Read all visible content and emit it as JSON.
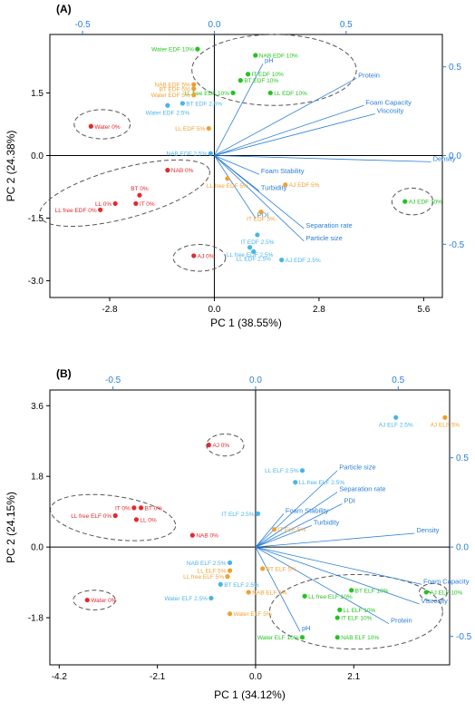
{
  "chart_data": [
    {
      "type": "scatter",
      "panel": "(A)",
      "xlabel": "PC 1 (38.55%)",
      "ylabel": "PC 2 (24.38%)",
      "xlim": [
        -4.4,
        6.1
      ],
      "ylim": [
        -3.4,
        2.9
      ],
      "xticks": [
        "-2.8",
        "0.0",
        "2.8",
        "5.6"
      ],
      "xtick_values": [
        -2.8,
        0.0,
        2.8,
        5.6
      ],
      "yticks": [
        "1.5",
        "0.0",
        "-1.5",
        "-3.0"
      ],
      "ytick_values": [
        1.5,
        0.0,
        -1.5,
        -3.0
      ],
      "loading_axis_ticks_top": [
        "-0.5",
        "0.0",
        "0.5"
      ],
      "loading_axis_ticks_top_values": [
        -0.5,
        0.0,
        0.5
      ],
      "loading_axis_ticks_right": [
        "0.5",
        "0.0",
        "-0.5"
      ],
      "loading_axis_ticks_right_values": [
        0.5,
        0.0,
        -0.5
      ],
      "colors": {
        "red": "#e8262d",
        "orange": "#f0a030",
        "blue": "#4ab4e8",
        "green": "#22c41e",
        "vector": "#2a7fd6"
      },
      "points": [
        {
          "label": "Water EDF 10%",
          "x": -0.45,
          "y": 2.55,
          "color": "green",
          "anchor": "end"
        },
        {
          "label": "NAB EDF 10%",
          "x": 1.1,
          "y": 2.4,
          "color": "green",
          "anchor": "start"
        },
        {
          "label": "IT EDF 10%",
          "x": 0.9,
          "y": 1.95,
          "color": "green",
          "anchor": "start"
        },
        {
          "label": "BT EDF 10%",
          "x": 0.7,
          "y": 1.8,
          "color": "green",
          "anchor": "start"
        },
        {
          "label": "LL EDF 10%",
          "x": 1.5,
          "y": 1.5,
          "color": "green",
          "anchor": "start"
        },
        {
          "label": "LL free EDF 10%",
          "x": 0.5,
          "y": 1.5,
          "color": "green",
          "anchor": "end"
        },
        {
          "label": "AJ EDF 10%",
          "x": 5.1,
          "y": -1.1,
          "color": "green",
          "anchor": "start"
        },
        {
          "label": "NAB EDF 5%",
          "x": -0.55,
          "y": 1.7,
          "color": "orange",
          "anchor": "end"
        },
        {
          "label": "BT EDF 5%",
          "x": -0.55,
          "y": 1.6,
          "color": "orange",
          "anchor": "end"
        },
        {
          "label": "Water EDF 5%",
          "x": -0.55,
          "y": 1.45,
          "color": "orange",
          "anchor": "end"
        },
        {
          "label": "LL EDF 5%",
          "x": -0.15,
          "y": 0.65,
          "color": "orange",
          "anchor": "end"
        },
        {
          "label": "LL free EDF 5%",
          "x": 0.35,
          "y": -0.55,
          "color": "orange",
          "anchor": "middle-below"
        },
        {
          "label": "AJ EDF 5%",
          "x": 1.9,
          "y": -0.7,
          "color": "orange",
          "anchor": "start"
        },
        {
          "label": "IT EDF 5%",
          "x": 1.25,
          "y": -1.35,
          "color": "orange",
          "anchor": "middle-below"
        },
        {
          "label": "BT EDF 2.5%",
          "x": -0.85,
          "y": 1.25,
          "color": "blue",
          "anchor": "start"
        },
        {
          "label": "Water EDF 2.5%",
          "x": -1.25,
          "y": 1.2,
          "color": "blue",
          "anchor": "middle-below"
        },
        {
          "label": "NAB EDF 2.5%",
          "x": -0.1,
          "y": 0.05,
          "color": "blue",
          "anchor": "end"
        },
        {
          "label": "IT EDF 2.5%",
          "x": 1.15,
          "y": -1.9,
          "color": "blue",
          "anchor": "middle-below"
        },
        {
          "label": "LL free EDF 2.5%",
          "x": 0.95,
          "y": -2.2,
          "color": "blue",
          "anchor": "middle-below"
        },
        {
          "label": "LL EDF 2.5%",
          "x": 1.05,
          "y": -2.3,
          "color": "blue",
          "anchor": "middle-below"
        },
        {
          "label": "AJ EDF 2.5%",
          "x": 1.8,
          "y": -2.5,
          "color": "blue",
          "anchor": "start"
        },
        {
          "label": "Water 0%",
          "x": -3.3,
          "y": 0.7,
          "color": "red",
          "anchor": "start"
        },
        {
          "label": "NAB 0%",
          "x": -1.25,
          "y": -0.35,
          "color": "red",
          "anchor": "start"
        },
        {
          "label": "BT 0%",
          "x": -2.0,
          "y": -0.95,
          "color": "red",
          "anchor": "middle-above"
        },
        {
          "label": "IT 0%",
          "x": -2.1,
          "y": -1.15,
          "color": "red",
          "anchor": "start"
        },
        {
          "label": "LL 0%",
          "x": -2.65,
          "y": -1.15,
          "color": "red",
          "anchor": "end"
        },
        {
          "label": "LL free EDF 0%",
          "x": -3.05,
          "y": -1.3,
          "color": "red",
          "anchor": "end"
        },
        {
          "label": "AJ 0%",
          "x": -0.55,
          "y": -2.4,
          "color": "red",
          "anchor": "start"
        }
      ],
      "vectors": [
        {
          "label": "pH",
          "x": 1.3,
          "y": 2.2
        },
        {
          "label": "Protein",
          "x": 3.8,
          "y": 1.85
        },
        {
          "label": "Foam Capacity",
          "x": 4.0,
          "y": 1.2
        },
        {
          "label": "Viscosity",
          "x": 4.3,
          "y": 1.0
        },
        {
          "label": "Density",
          "x": 5.8,
          "y": -0.15
        },
        {
          "label": "Foam Stability",
          "x": 1.2,
          "y": -0.45
        },
        {
          "label": "Turbidity",
          "x": 1.2,
          "y": -0.85
        },
        {
          "label": "PDI",
          "x": 1.1,
          "y": -1.5
        },
        {
          "label": "Separation rate",
          "x": 2.4,
          "y": -1.75
        },
        {
          "label": "Particle size",
          "x": 2.4,
          "y": -2.05
        }
      ],
      "ellipses": [
        {
          "cx": 1.6,
          "cy": 2.05,
          "rx": 2.2,
          "ry": 0.85,
          "rot": 0
        },
        {
          "cx": -3.0,
          "cy": 0.75,
          "rx": 0.75,
          "ry": 0.35,
          "rot": 0
        },
        {
          "cx": -2.4,
          "cy": -0.9,
          "rx": 2.35,
          "ry": 0.6,
          "rot": 15
        },
        {
          "cx": -0.4,
          "cy": -2.45,
          "rx": 0.7,
          "ry": 0.32,
          "rot": 0
        },
        {
          "cx": 5.3,
          "cy": -1.1,
          "rx": 0.55,
          "ry": 0.32,
          "rot": 0
        }
      ]
    },
    {
      "type": "scatter",
      "panel": "(B)",
      "xlabel": "PC 1 (34.12%)",
      "ylabel": "PC 2 (24.15%)",
      "xlim": [
        -4.4,
        4.15
      ],
      "ylim": [
        -3.0,
        4.0
      ],
      "xticks": [
        "-4.2",
        "-2.1",
        "0.0",
        "2.1"
      ],
      "xtick_values": [
        -4.2,
        -2.1,
        0.0,
        2.1
      ],
      "yticks": [
        "3.6",
        "1.8",
        "0.0",
        "-1.8"
      ],
      "ytick_values": [
        3.6,
        1.8,
        0.0,
        -1.8
      ],
      "loading_axis_ticks_top": [
        "-0.5",
        "0.0",
        "0.5"
      ],
      "loading_axis_ticks_top_values": [
        -0.5,
        0.0,
        0.5
      ],
      "loading_axis_ticks_right": [
        "0.5",
        "0.0",
        "-0.5"
      ],
      "loading_axis_ticks_right_values": [
        0.5,
        0.0,
        -0.5
      ],
      "colors": {
        "red": "#e8262d",
        "orange": "#f0a030",
        "blue": "#4ab4e8",
        "green": "#22c41e",
        "vector": "#2a7fd6"
      },
      "points": [
        {
          "label": "AJ ELF 2.5%",
          "x": 3.0,
          "y": 3.3,
          "color": "blue",
          "anchor": "middle-below"
        },
        {
          "label": "AJ ELF 5%",
          "x": 4.05,
          "y": 3.3,
          "color": "orange",
          "anchor": "middle-below"
        },
        {
          "label": "LL ELF 2.5%",
          "x": 1.0,
          "y": 1.95,
          "color": "blue",
          "anchor": "end"
        },
        {
          "label": "LL free ELF 2.5%",
          "x": 0.85,
          "y": 1.65,
          "color": "blue",
          "anchor": "start"
        },
        {
          "label": "IT ELF 2.5%",
          "x": 0.05,
          "y": 0.85,
          "color": "blue",
          "anchor": "end"
        },
        {
          "label": "IT ELF 5%",
          "x": 0.4,
          "y": 0.45,
          "color": "orange",
          "anchor": "start"
        },
        {
          "label": "AJ 0%",
          "x": -1.0,
          "y": 2.6,
          "color": "red",
          "anchor": "start"
        },
        {
          "label": "LL free ELF 0%",
          "x": -3.0,
          "y": 0.8,
          "color": "red",
          "anchor": "end"
        },
        {
          "label": "IT 0%",
          "x": -2.6,
          "y": 1.0,
          "color": "red",
          "anchor": "end"
        },
        {
          "label": "BT 0%",
          "x": -2.45,
          "y": 1.0,
          "color": "red",
          "anchor": "start"
        },
        {
          "label": "LL 0%",
          "x": -2.55,
          "y": 0.7,
          "color": "red",
          "anchor": "start"
        },
        {
          "label": "NAB 0%",
          "x": -1.35,
          "y": 0.3,
          "color": "red",
          "anchor": "start"
        },
        {
          "label": "Water 0%",
          "x": -3.6,
          "y": -1.35,
          "color": "red",
          "anchor": "start"
        },
        {
          "label": "NAB ELF 2.5%",
          "x": -0.55,
          "y": -0.4,
          "color": "blue",
          "anchor": "end"
        },
        {
          "label": "LL ELF 5%",
          "x": -0.55,
          "y": -0.6,
          "color": "orange",
          "anchor": "end"
        },
        {
          "label": "LL free ELF 5%",
          "x": -0.6,
          "y": -0.75,
          "color": "orange",
          "anchor": "end"
        },
        {
          "label": "BT ELF 2.5%",
          "x": -0.75,
          "y": -0.95,
          "color": "blue",
          "anchor": "start"
        },
        {
          "label": "BT ELF 5%",
          "x": 0.15,
          "y": -0.55,
          "color": "orange",
          "anchor": "start"
        },
        {
          "label": "NAB ELF 5%",
          "x": -0.15,
          "y": -1.15,
          "color": "orange",
          "anchor": "start"
        },
        {
          "label": "Water ELF 2.5%",
          "x": -0.95,
          "y": -1.3,
          "color": "blue",
          "anchor": "end"
        },
        {
          "label": "Water ELF 5%",
          "x": -0.55,
          "y": -1.7,
          "color": "orange",
          "anchor": "start"
        },
        {
          "label": "LL free ELF 10%",
          "x": 1.05,
          "y": -1.25,
          "color": "green",
          "anchor": "start"
        },
        {
          "label": "BT ELF 10%",
          "x": 2.05,
          "y": -1.1,
          "color": "green",
          "anchor": "start"
        },
        {
          "label": "AJ ELF 10%",
          "x": 3.65,
          "y": -1.15,
          "color": "green",
          "anchor": "start"
        },
        {
          "label": "LL ELF 10%",
          "x": 1.8,
          "y": -1.6,
          "color": "green",
          "anchor": "start"
        },
        {
          "label": "IT ELF 10%",
          "x": 1.75,
          "y": -1.8,
          "color": "green",
          "anchor": "start"
        },
        {
          "label": "Water ELF 10%",
          "x": 1.0,
          "y": -2.3,
          "color": "green",
          "anchor": "end"
        },
        {
          "label": "NAB ELF 10%",
          "x": 1.75,
          "y": -2.3,
          "color": "green",
          "anchor": "start"
        }
      ],
      "vectors": [
        {
          "label": "Particle size",
          "x": 1.75,
          "y": 1.95
        },
        {
          "label": "Separation rate",
          "x": 1.75,
          "y": 1.4
        },
        {
          "label": "PDI",
          "x": 1.85,
          "y": 1.1
        },
        {
          "label": "Foam Stability",
          "x": 0.6,
          "y": 0.85
        },
        {
          "label": "Turbidity",
          "x": 1.2,
          "y": 0.55
        },
        {
          "label": "Density",
          "x": 3.4,
          "y": 0.35
        },
        {
          "label": "Foam Capacity",
          "x": 3.55,
          "y": -0.95
        },
        {
          "label": "Viscosity",
          "x": 3.5,
          "y": -1.45
        },
        {
          "label": "Protein",
          "x": 2.85,
          "y": -1.95
        },
        {
          "label": "pH",
          "x": 0.95,
          "y": -2.15
        }
      ],
      "ellipses": [
        {
          "cx": -3.05,
          "cy": 0.75,
          "rx": 1.35,
          "ry": 0.55,
          "rot": -8
        },
        {
          "cx": -0.65,
          "cy": 2.6,
          "rx": 0.4,
          "ry": 0.28,
          "rot": 0
        },
        {
          "cx": -3.45,
          "cy": -1.35,
          "rx": 0.45,
          "ry": 0.25,
          "rot": 0
        },
        {
          "cx": 2.15,
          "cy": -1.65,
          "rx": 1.85,
          "ry": 0.95,
          "rot": 0
        },
        {
          "cx": 3.8,
          "cy": -1.15,
          "rx": 0.3,
          "ry": 0.22,
          "rot": 0
        }
      ]
    }
  ]
}
